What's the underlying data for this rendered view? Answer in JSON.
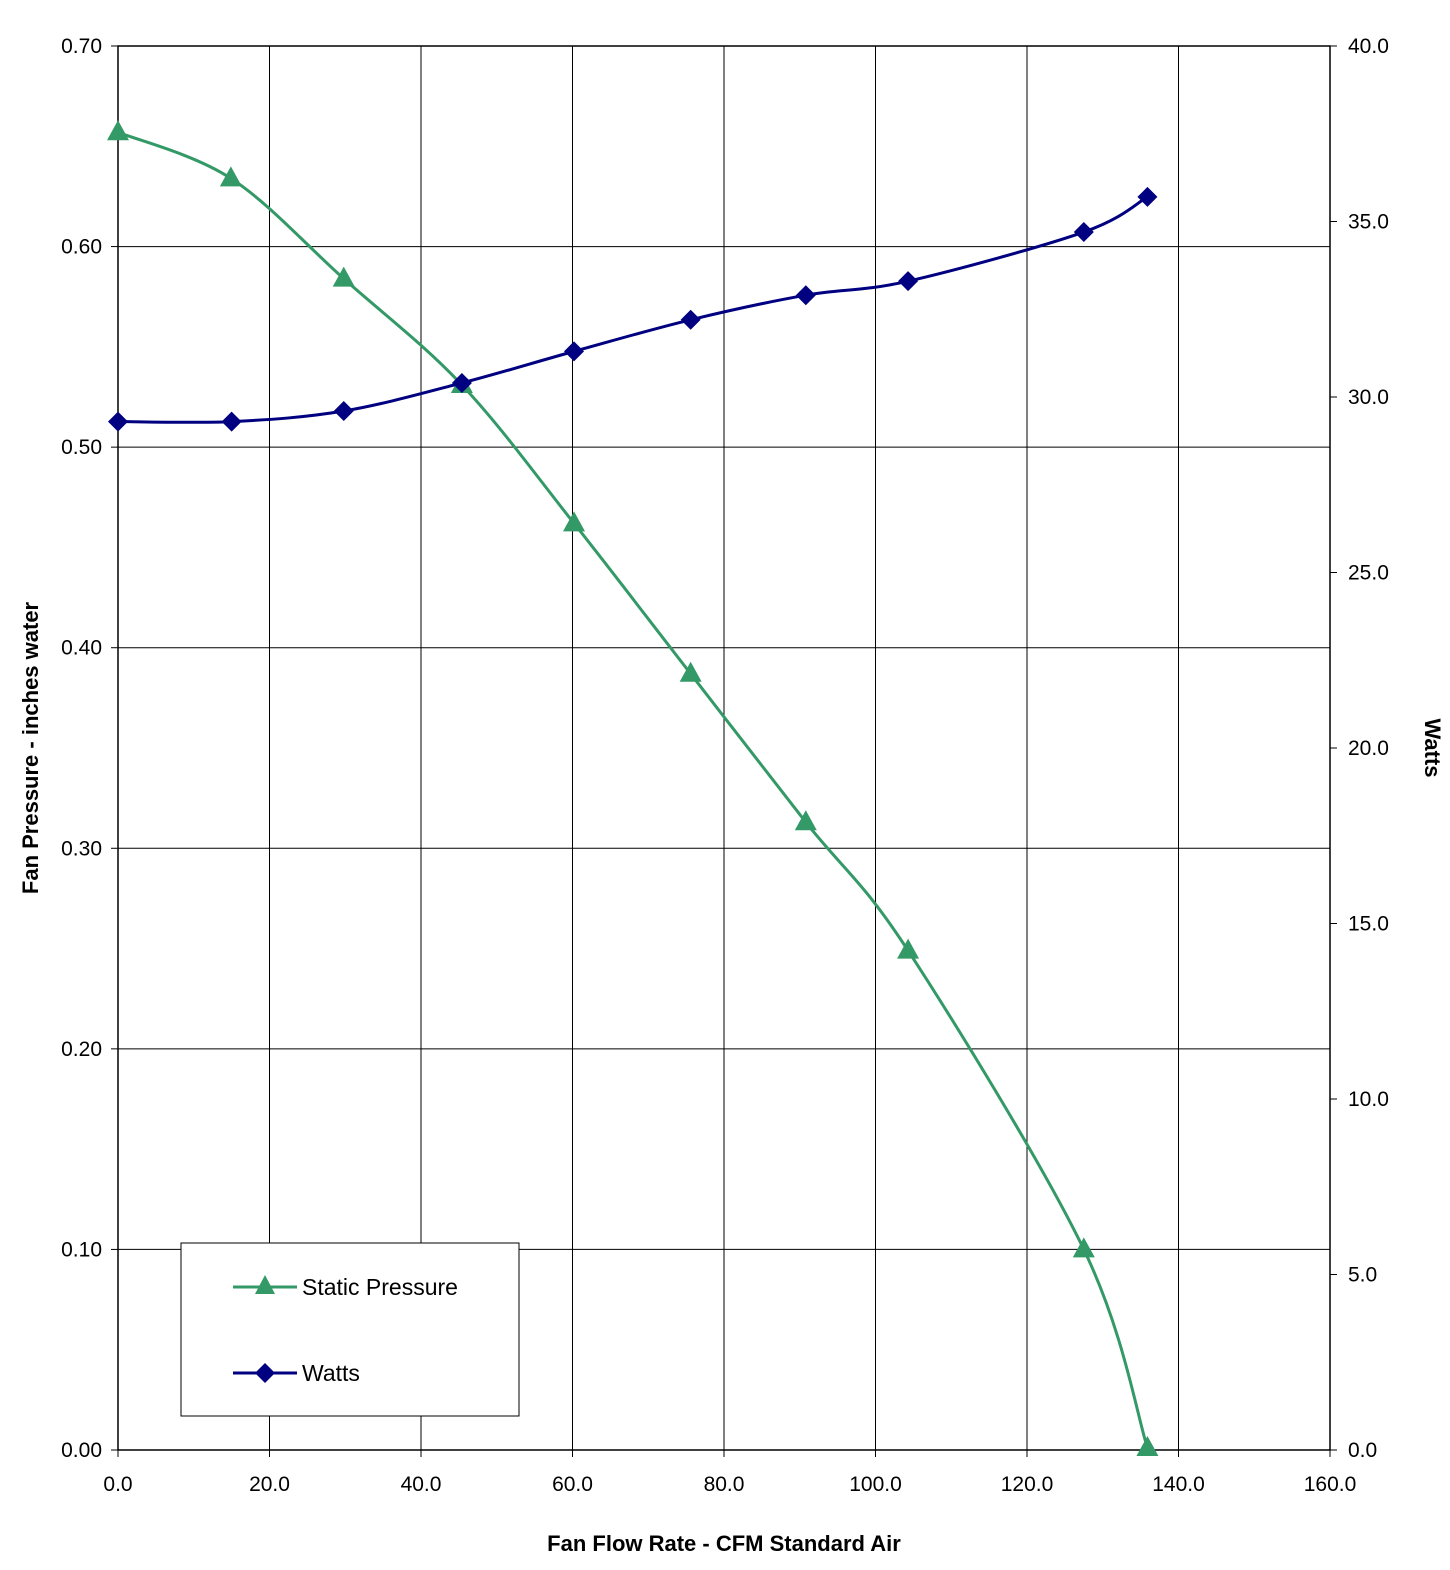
{
  "chart_data": {
    "type": "line",
    "title": "",
    "xlabel": "Fan Flow Rate - CFM Standard Air",
    "ylabel": "Fan Pressure - inches water",
    "y2label": "Watts",
    "xlim": [
      0,
      160
    ],
    "ylim": [
      0,
      0.7
    ],
    "y2lim": [
      0,
      40
    ],
    "x_ticks": [
      "0.0",
      "20.0",
      "40.0",
      "60.0",
      "80.0",
      "100.0",
      "120.0",
      "140.0",
      "160.0"
    ],
    "y_ticks": [
      "0.00",
      "0.10",
      "0.20",
      "0.30",
      "0.40",
      "0.50",
      "0.60",
      "0.70"
    ],
    "y2_ticks": [
      "0.0",
      "5.0",
      "10.0",
      "15.0",
      "20.0",
      "25.0",
      "30.0",
      "35.0",
      "40.0"
    ],
    "grid": true,
    "legend_position": "bottom-left",
    "series": [
      {
        "name": "Static Pressure",
        "axis": "left",
        "marker": "triangle",
        "color": "#339966",
        "x": [
          0.0,
          14.9,
          29.8,
          45.4,
          60.2,
          75.6,
          90.8,
          104.3,
          127.5,
          135.9
        ],
        "y": [
          0.657,
          0.634,
          0.584,
          0.531,
          0.462,
          0.387,
          0.313,
          0.249,
          0.1,
          0.001
        ]
      },
      {
        "name": "Watts",
        "axis": "right",
        "marker": "diamond",
        "color": "#000080",
        "x": [
          0.0,
          15.0,
          29.8,
          45.4,
          60.2,
          75.6,
          90.8,
          104.3,
          127.5,
          135.9
        ],
        "y": [
          29.3,
          29.3,
          29.6,
          30.4,
          31.3,
          32.2,
          32.9,
          33.3,
          34.7,
          35.7
        ]
      }
    ]
  }
}
